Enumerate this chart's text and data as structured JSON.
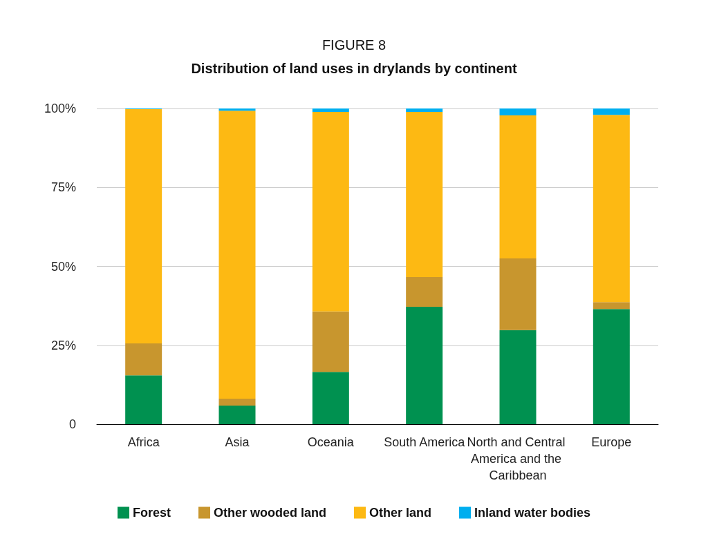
{
  "chart_data": {
    "type": "bar",
    "title": "FIGURE 8",
    "subtitle": "Distribution of land uses in drylands by continent",
    "categories": [
      "Africa",
      "Asia",
      "Oceania",
      "South America",
      "North and Central America and the Caribbean",
      "Europe"
    ],
    "stacked": true,
    "series": [
      {
        "name": "Forest",
        "color": "#009150",
        "values": [
          15.5,
          5.9,
          16.6,
          37.2,
          29.8,
          36.5
        ]
      },
      {
        "name": "Other wooded land",
        "color": "#c8962e",
        "values": [
          10.1,
          2.2,
          19.1,
          9.4,
          22.7,
          2.2
        ]
      },
      {
        "name": "Other land",
        "color": "#fdb913",
        "values": [
          74.2,
          91.2,
          63.2,
          52.3,
          45.3,
          59.3
        ]
      },
      {
        "name": "Inland water bodies",
        "color": "#00aeef",
        "values": [
          0.2,
          0.7,
          1.1,
          1.1,
          2.2,
          2.0
        ]
      }
    ],
    "ylim": [
      0,
      100
    ],
    "yticks": [
      {
        "value": 0,
        "label": "0"
      },
      {
        "value": 25,
        "label": "25%"
      },
      {
        "value": 50,
        "label": "50%"
      },
      {
        "value": 75,
        "label": "75%"
      },
      {
        "value": 100,
        "label": "100%"
      }
    ],
    "grid": "y",
    "legend": "bottom"
  }
}
